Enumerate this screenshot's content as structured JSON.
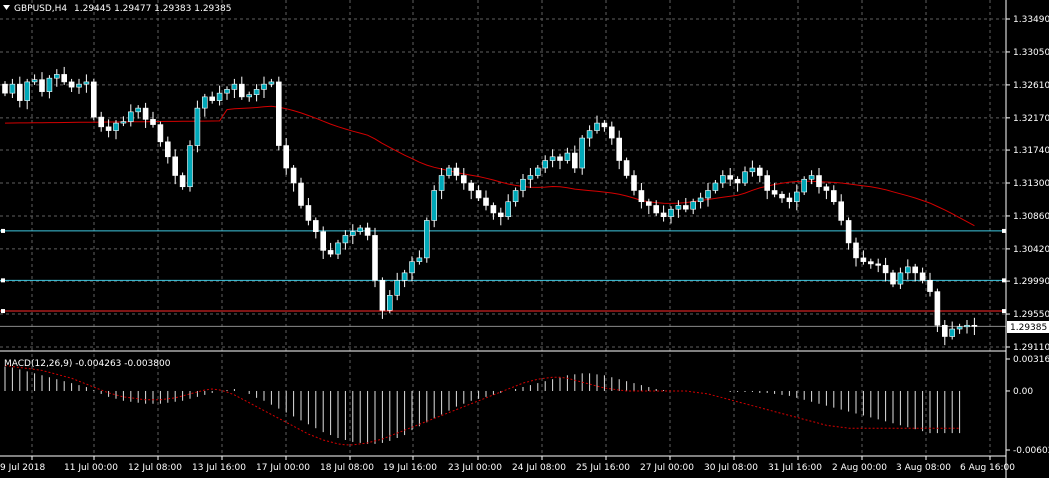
{
  "header": {
    "symbol": "GBPUSD,H4",
    "ohlc": "1.29445 1.29477 1.29383 1.29385"
  },
  "macd": {
    "label": "MACD(12,26,9) -0.004263 -0.003800",
    "axis_labels": [
      "0.003161",
      "0.00",
      "-0.006024"
    ]
  },
  "colors": {
    "background": "#000000",
    "grid": "#5f5f5f",
    "candle": "#ffffff",
    "bull_body": "#00a8b8",
    "ma_line": "#d40000",
    "hline_cyan": "#3fc8e0",
    "hline_red": "#ff2a2a",
    "macd_hist": "#e0e0e0",
    "macd_signal": "#d40000"
  },
  "chart_data": [
    {
      "type": "candlestick",
      "title": "GBPUSD,H4",
      "ylim": [
        1.29,
        1.336
      ],
      "y_ticks": [
        "1.33490",
        "1.33050",
        "1.32610",
        "1.32170",
        "1.31740",
        "1.31300",
        "1.30860",
        "1.30420",
        "1.29990",
        "1.29550",
        "1.29110"
      ],
      "x_tick_labels": [
        "9 Jul 2018",
        "11 Jul 00:00",
        "12 Jul 08:00",
        "13 Jul 16:00",
        "17 Jul 00:00",
        "18 Jul 08:00",
        "19 Jul 16:00",
        "23 Jul 00:00",
        "24 Jul 08:00",
        "25 Jul 16:00",
        "27 Jul 00:00",
        "30 Jul 08:00",
        "31 Jul 16:00",
        "2 Aug 00:00",
        "3 Aug 08:00",
        "6 Aug 16:00"
      ],
      "current_price": "1.29385",
      "horizontal_lines": [
        {
          "price": 1.3066,
          "color": "cyan"
        },
        {
          "price": 1.3,
          "color": "cyan"
        },
        {
          "price": 1.2959,
          "color": "red"
        }
      ],
      "close": [
        1.325,
        1.3262,
        1.324,
        1.3265,
        1.3268,
        1.3252,
        1.327,
        1.3275,
        1.3265,
        1.3258,
        1.3262,
        1.3265,
        1.3218,
        1.3205,
        1.32,
        1.321,
        1.3212,
        1.3225,
        1.323,
        1.3215,
        1.3208,
        1.3185,
        1.3165,
        1.314,
        1.3125,
        1.318,
        1.323,
        1.3245,
        1.324,
        1.325,
        1.3255,
        1.3262,
        1.3245,
        1.3248,
        1.3255,
        1.3262,
        1.3265,
        1.318,
        1.315,
        1.313,
        1.31,
        1.308,
        1.3065,
        1.304,
        1.3035,
        1.305,
        1.306,
        1.3065,
        1.307,
        1.306,
        1.3,
        1.296,
        1.298,
        1.3,
        1.301,
        1.3025,
        1.303,
        1.308,
        1.312,
        1.314,
        1.315,
        1.314,
        1.313,
        1.312,
        1.311,
        1.31,
        1.309,
        1.3085,
        1.3105,
        1.312,
        1.3135,
        1.314,
        1.315,
        1.316,
        1.3165,
        1.316,
        1.317,
        1.315,
        1.319,
        1.32,
        1.321,
        1.3205,
        1.319,
        1.316,
        1.314,
        1.312,
        1.3105,
        1.31,
        1.309,
        1.3085,
        1.3095,
        1.31,
        1.3095,
        1.3105,
        1.311,
        1.312,
        1.313,
        1.314,
        1.3135,
        1.313,
        1.3145,
        1.315,
        1.314,
        1.312,
        1.3115,
        1.311,
        1.3105,
        1.3118,
        1.3135,
        1.314,
        1.3125,
        1.312,
        1.3105,
        1.308,
        1.305,
        1.303,
        1.3025,
        1.3022,
        1.302,
        1.301,
        1.2995,
        1.301,
        1.3018,
        1.301,
        1.3,
        1.2985,
        1.294,
        1.2925,
        1.2935,
        1.2938,
        1.294,
        1.29385
      ],
      "ma_period": 50
    },
    {
      "type": "bar",
      "title": "MACD(12,26,9) -0.004263 -0.003800",
      "ylim": [
        -0.006024,
        0.003161
      ],
      "series": [
        {
          "values": [
            0.0025,
            0.0024,
            0.0022,
            0.002,
            0.0018,
            0.0016,
            0.0014,
            0.0012,
            0.001,
            0.0008,
            0.0006,
            0.0004,
            0.0001,
            -0.0003,
            -0.0006,
            -0.0008,
            -0.001,
            -0.0011,
            -0.0012,
            -0.0013,
            -0.0013,
            -0.0013,
            -0.0012,
            -0.0011,
            -0.001,
            -0.0008,
            -0.0006,
            -0.0004,
            -0.0002,
            0.0,
            0.0001,
            0.0002,
            0.0,
            -0.0003,
            -0.0007,
            -0.001,
            -0.0014,
            -0.0018,
            -0.0022,
            -0.0026,
            -0.003,
            -0.0034,
            -0.0038,
            -0.0042,
            -0.0045,
            -0.0048,
            -0.005,
            -0.0052,
            -0.0053,
            -0.0054,
            -0.0054,
            -0.0053,
            -0.0051,
            -0.0048,
            -0.0045,
            -0.004,
            -0.0036,
            -0.0032,
            -0.0028,
            -0.0024,
            -0.002,
            -0.0016,
            -0.0013,
            -0.001,
            -0.0008,
            -0.0006,
            -0.0004,
            -0.0002,
            0.0,
            0.0002,
            0.0004,
            0.0006,
            0.0008,
            0.001,
            0.0012,
            0.0014,
            0.0016,
            0.0017,
            0.0018,
            0.0018,
            0.0017,
            0.0016,
            0.0014,
            0.0012,
            0.001,
            0.0008,
            0.0006,
            0.0004,
            0.0002,
            0.0001,
            0.0,
            0.0,
            0.0,
            0.0,
            0.0,
            0.0,
            0.0,
            0.0,
            -0.0001,
            -0.0001,
            -0.0001,
            -0.0001,
            -0.0002,
            -0.0002,
            -0.0003,
            -0.0004,
            -0.0005,
            -0.0007,
            -0.0009,
            -0.0011,
            -0.0013,
            -0.0015,
            -0.0017,
            -0.0019,
            -0.0021,
            -0.0023,
            -0.0025,
            -0.0027,
            -0.0029,
            -0.0031,
            -0.0033,
            -0.0035,
            -0.0037,
            -0.0039,
            -0.0041,
            -0.0043,
            -0.0043,
            -0.0043,
            -0.0043,
            -0.0043
          ]
        },
        {
          "values": [
            0.0026,
            0.0025,
            0.0024,
            0.0023,
            0.0022,
            0.0021,
            0.0019,
            0.0017,
            0.0015,
            0.0013,
            0.001,
            0.0007,
            0.0004,
            0.0001,
            -0.0002,
            -0.0004,
            -0.0006,
            -0.0007,
            -0.0008,
            -0.0009,
            -0.0009,
            -0.0009,
            -0.0008,
            -0.0007,
            -0.0005,
            -0.0003,
            -0.0001,
            0.0001,
            0.0002,
            0.0001,
            -0.0001,
            -0.0004,
            -0.0008,
            -0.0012,
            -0.0016,
            -0.002,
            -0.0024,
            -0.0028,
            -0.0032,
            -0.0036,
            -0.004,
            -0.0044,
            -0.0047,
            -0.005,
            -0.0052,
            -0.0054,
            -0.0055,
            -0.0055,
            -0.0054,
            -0.0053,
            -0.0051,
            -0.0049,
            -0.0046,
            -0.0043,
            -0.004,
            -0.0037,
            -0.0034,
            -0.0031,
            -0.0028,
            -0.0025,
            -0.0022,
            -0.0019,
            -0.0016,
            -0.0013,
            -0.001,
            -0.0007,
            -0.0004,
            -0.0001,
            0.0002,
            0.0005,
            0.0008,
            0.001,
            0.0012,
            0.0013,
            0.0014,
            0.0014,
            0.0013,
            0.0011,
            0.0009,
            0.0007,
            0.0005,
            0.0003,
            0.0002,
            0.0001,
            0.0,
            0.0,
            0.0,
            0.0,
            0.0,
            0.0,
            0.0,
            0.0,
            0.0,
            -0.0001,
            -0.0002,
            -0.0003,
            -0.0005,
            -0.0007,
            -0.0009,
            -0.0011,
            -0.0013,
            -0.0015,
            -0.0017,
            -0.0019,
            -0.0021,
            -0.0023,
            -0.0025,
            -0.0027,
            -0.0029,
            -0.0031,
            -0.0033,
            -0.0035,
            -0.0036,
            -0.0037,
            -0.0038,
            -0.0038,
            -0.0038,
            -0.0038,
            -0.0038,
            -0.0038,
            -0.0038,
            -0.0038,
            -0.0038,
            -0.0038,
            -0.0038,
            -0.0038,
            -0.0038,
            -0.0038,
            -0.0038,
            -0.0038
          ]
        }
      ]
    }
  ]
}
